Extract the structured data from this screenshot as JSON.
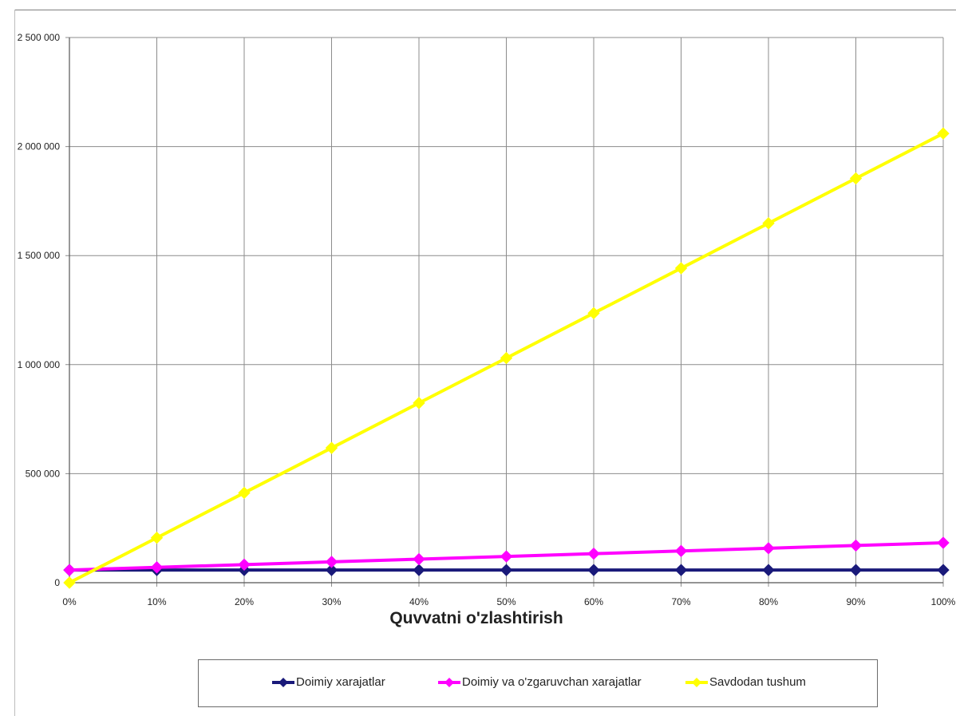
{
  "chart_data": {
    "type": "line",
    "title": "",
    "xlabel": "Quvvatni o'zlashtirish",
    "ylabel": "",
    "categories": [
      "0%",
      "10%",
      "20%",
      "30%",
      "40%",
      "50%",
      "60%",
      "70%",
      "80%",
      "90%",
      "100%"
    ],
    "x": [
      0,
      10,
      20,
      30,
      40,
      50,
      60,
      70,
      80,
      90,
      100
    ],
    "ylim": [
      0,
      2500000
    ],
    "yticks": [
      0,
      500000,
      1000000,
      1500000,
      2000000,
      2500000
    ],
    "ytick_labels": [
      "0",
      "500 000",
      "1 000 000",
      "1 500 000",
      "2 000 000",
      "2 500 000"
    ],
    "grid": true,
    "legend_position": "bottom",
    "series": [
      {
        "name": "Doimiy xarajatlar",
        "color": "#1a1a7a",
        "values": [
          58000,
          58000,
          58000,
          58000,
          58000,
          58000,
          58000,
          58000,
          58000,
          58000,
          58000
        ]
      },
      {
        "name": "Doimiy va o'zgaruvchan xarajatlar",
        "color": "#ff00ff",
        "values": [
          58000,
          70500,
          83000,
          95500,
          108000,
          120500,
          133000,
          145500,
          158000,
          170500,
          183000
        ]
      },
      {
        "name": "Savdodan tushum",
        "color": "#ffff00",
        "values": [
          0,
          206000,
          412000,
          618000,
          824000,
          1030000,
          1236000,
          1442000,
          1648000,
          1854000,
          2060000
        ]
      }
    ]
  }
}
